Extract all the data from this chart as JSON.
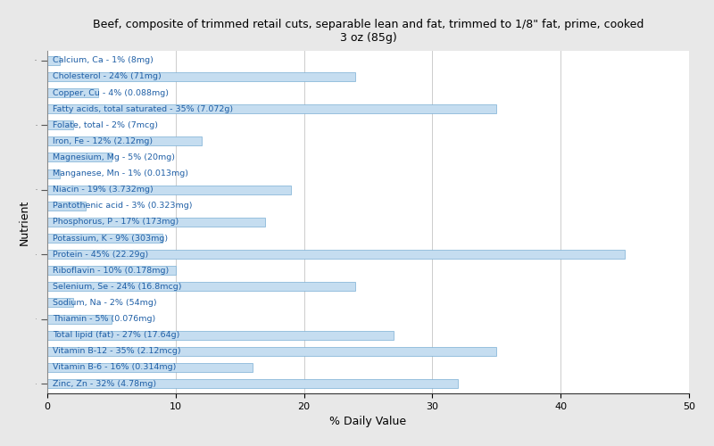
{
  "title": "Beef, composite of trimmed retail cuts, separable lean and fat, trimmed to 1/8\" fat, prime, cooked\n3 oz (85g)",
  "xlabel": "% Daily Value",
  "ylabel": "Nutrient",
  "bg_outer": "#e8e8e8",
  "bg_plot": "#ffffff",
  "bar_color": "#c5ddf0",
  "bar_edge_color": "#7aafd4",
  "text_color": "#1f5fa6",
  "xlim": [
    0,
    50
  ],
  "nutrients": [
    "Calcium, Ca - 1% (8mg)",
    "Cholesterol - 24% (71mg)",
    "Copper, Cu - 4% (0.088mg)",
    "Fatty acids, total saturated - 35% (7.072g)",
    "Folate, total - 2% (7mcg)",
    "Iron, Fe - 12% (2.12mg)",
    "Magnesium, Mg - 5% (20mg)",
    "Manganese, Mn - 1% (0.013mg)",
    "Niacin - 19% (3.732mg)",
    "Pantothenic acid - 3% (0.323mg)",
    "Phosphorus, P - 17% (173mg)",
    "Potassium, K - 9% (303mg)",
    "Protein - 45% (22.29g)",
    "Riboflavin - 10% (0.178mg)",
    "Selenium, Se - 24% (16.8mcg)",
    "Sodium, Na - 2% (54mg)",
    "Thiamin - 5% (0.076mg)",
    "Total lipid (fat) - 27% (17.64g)",
    "Vitamin B-12 - 35% (2.12mcg)",
    "Vitamin B-6 - 16% (0.314mg)",
    "Zinc, Zn - 32% (4.78mg)"
  ],
  "values": [
    1,
    24,
    4,
    35,
    2,
    12,
    5,
    1,
    19,
    3,
    17,
    9,
    45,
    10,
    24,
    2,
    5,
    27,
    35,
    16,
    32
  ]
}
